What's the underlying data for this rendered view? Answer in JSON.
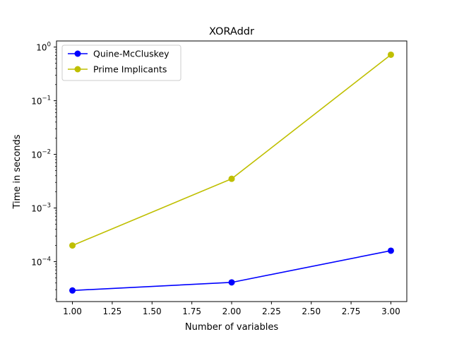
{
  "chart_data": {
    "type": "line",
    "title": "XORAddr",
    "xlabel": "Number of variables",
    "ylabel": "Time in seconds",
    "yscale": "log",
    "xlim": [
      0.9,
      3.1
    ],
    "ylim": [
      1.8e-05,
      1.3
    ],
    "xticks": [
      1.0,
      1.25,
      1.5,
      1.75,
      2.0,
      2.25,
      2.5,
      2.75,
      3.0
    ],
    "xtick_labels": [
      "1.00",
      "1.25",
      "1.50",
      "1.75",
      "2.00",
      "2.25",
      "2.50",
      "2.75",
      "3.00"
    ],
    "yticks": [
      0.0001,
      0.001,
      0.01,
      0.1,
      1
    ],
    "ytick_labels": [
      {
        "base": "10",
        "exp": "−4"
      },
      {
        "base": "10",
        "exp": "−3"
      },
      {
        "base": "10",
        "exp": "−2"
      },
      {
        "base": "10",
        "exp": "−1"
      },
      {
        "base": "10",
        "exp": "0"
      }
    ],
    "grid": false,
    "legend_position": "upper-left",
    "x": [
      1,
      2,
      3
    ],
    "series": [
      {
        "name": "Quine-McCluskey",
        "color": "#0000ff",
        "marker": "circle",
        "values": [
          2.9e-05,
          4.1e-05,
          0.00016
        ]
      },
      {
        "name": "Prime Implicants",
        "color": "#bfbf00",
        "marker": "circle",
        "values": [
          0.0002,
          0.0035,
          0.72
        ]
      }
    ]
  }
}
